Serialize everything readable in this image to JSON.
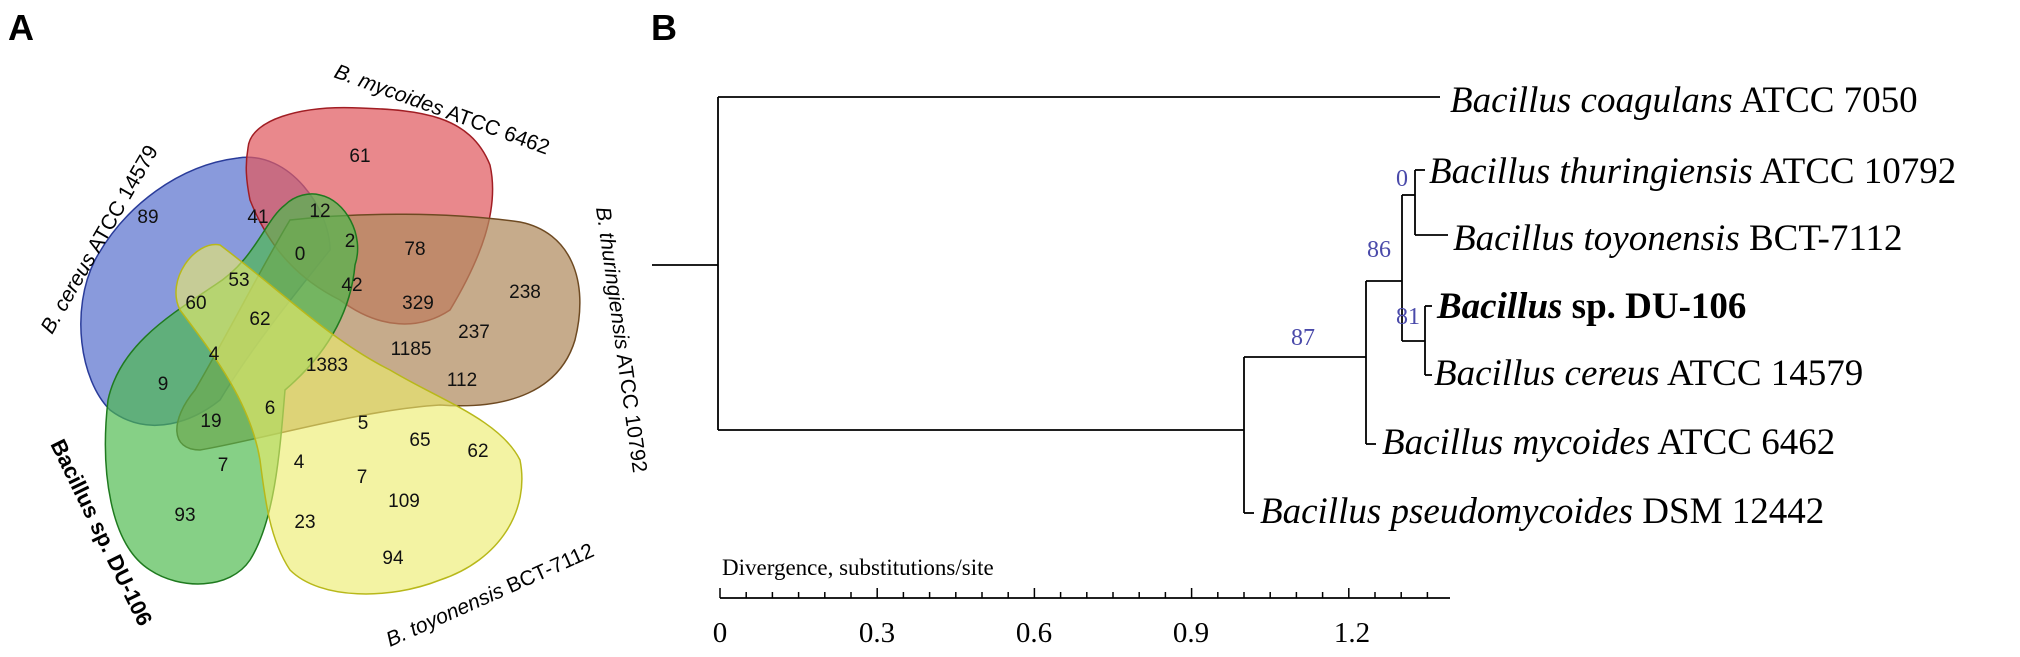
{
  "panel_a": {
    "label": "A",
    "sets": {
      "mycoides": {
        "label_italic": "B. mycoides",
        "label_rest": " ATCC 6462",
        "color": "#e05a5f"
      },
      "cereus": {
        "label_italic": "B. cereus",
        "label_rest": " ATCC 14579",
        "color": "#5b73cf"
      },
      "thuringiensis": {
        "label_italic": "B. thuringiensis",
        "label_rest": " ATCC 10792",
        "color": "#b08a5e"
      },
      "du106": {
        "label": "Bacillus sp. DU-106",
        "color": "#4cba4c"
      },
      "toyonensis": {
        "label_italic": "B. toyonensis",
        "label_rest": " BCT-7112",
        "color": "#ecec6a"
      }
    },
    "counts": [
      "61",
      "89",
      "41",
      "12",
      "2",
      "78",
      "238",
      "0",
      "42",
      "53",
      "60",
      "62",
      "329",
      "237",
      "4",
      "1383",
      "1185",
      "112",
      "9",
      "19",
      "6",
      "5",
      "65",
      "62",
      "7",
      "4",
      "7",
      "109",
      "93",
      "23",
      "94"
    ]
  },
  "panel_b": {
    "label": "B",
    "taxa": [
      {
        "genus": "Bacillus",
        "species": "coagulans",
        "strain": "ATCC 7050"
      },
      {
        "genus": "Bacillus",
        "species": "thuringiensis",
        "strain": "ATCC 10792"
      },
      {
        "genus": "Bacillus",
        "species": "toyonensis",
        "strain": "BCT-7112"
      },
      {
        "genus": "Bacillus",
        "rest": "sp. DU-106"
      },
      {
        "genus": "Bacillus",
        "species": "cereus",
        "strain": "ATCC 14579"
      },
      {
        "genus": "Bacillus",
        "species": "mycoides",
        "strain": "ATCC 6462"
      },
      {
        "genus": "Bacillus",
        "species": "pseudomycoides",
        "strain": "DSM 12442"
      }
    ],
    "bootstrap": [
      "0",
      "86",
      "81",
      "87"
    ],
    "scale_title": "Divergence, substitutions/site",
    "scale_ticks": [
      "0",
      "0.3",
      "0.6",
      "0.9",
      "1.2"
    ]
  }
}
